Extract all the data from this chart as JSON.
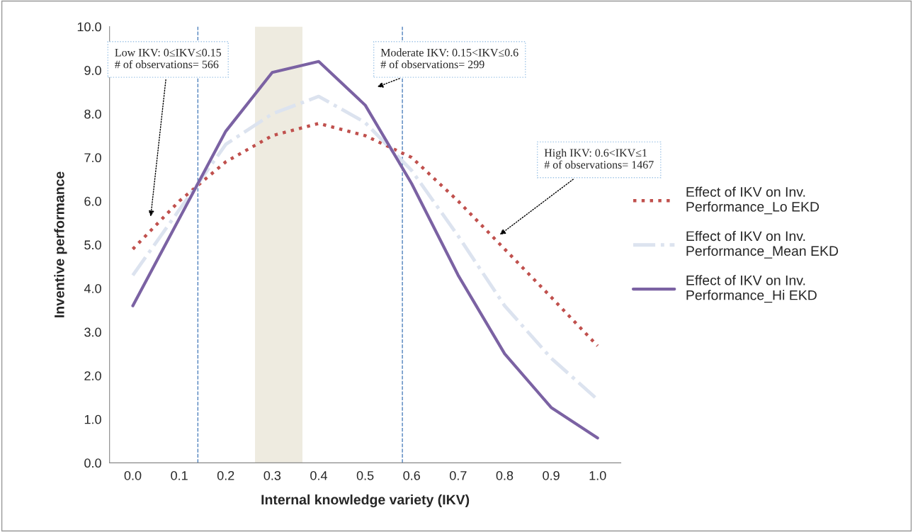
{
  "chart_data": {
    "type": "line",
    "xlabel": "Internal knowledge variety (IKV)",
    "ylabel": "Inventive performance",
    "x": [
      0.0,
      0.1,
      0.2,
      0.3,
      0.4,
      0.5,
      0.6,
      0.7,
      0.8,
      0.9,
      1.0
    ],
    "series": [
      {
        "name": "Effect of IKV on Inv.\nPerformance_Lo EKD",
        "color": "#c0504d",
        "line_style": "dotted",
        "values": [
          4.9,
          6.0,
          6.9,
          7.5,
          7.78,
          7.5,
          7.0,
          6.0,
          4.9,
          3.8,
          2.68
        ]
      },
      {
        "name": "Effect of IKV on Inv.\nPerformance_Mean EKD",
        "color": "#dce3ef",
        "line_style": "dashdot",
        "values": [
          4.3,
          5.8,
          7.3,
          8.0,
          8.4,
          7.8,
          6.7,
          5.2,
          3.6,
          2.4,
          1.45
        ]
      },
      {
        "name": "Effect of IKV on Inv.\nPerformance_Hi EKD",
        "color": "#7b62a3",
        "line_style": "solid",
        "values": [
          3.6,
          5.6,
          7.6,
          8.95,
          9.2,
          8.2,
          6.4,
          4.3,
          2.5,
          1.27,
          0.57
        ]
      }
    ],
    "xlim": [
      -0.05,
      1.05
    ],
    "xticks": [
      {
        "value": 0.0,
        "label": "0.0"
      },
      {
        "value": 0.1,
        "label": "0.1"
      },
      {
        "value": 0.2,
        "label": "0.2"
      },
      {
        "value": 0.3,
        "label": "0.3"
      },
      {
        "value": 0.4,
        "label": "0.4"
      },
      {
        "value": 0.5,
        "label": "0.5"
      },
      {
        "value": 0.6,
        "label": "0.6"
      },
      {
        "value": 0.7,
        "label": "0.7"
      },
      {
        "value": 0.8,
        "label": "0.8"
      },
      {
        "value": 0.9,
        "label": "0.9"
      },
      {
        "value": 1.0,
        "label": "1.0"
      }
    ],
    "ylim": [
      0,
      10
    ],
    "yticks": [
      {
        "value": 0,
        "label": "0.0"
      },
      {
        "value": 1,
        "label": "1.0"
      },
      {
        "value": 2,
        "label": "2.0"
      },
      {
        "value": 3,
        "label": "3.0"
      },
      {
        "value": 4,
        "label": "4.0"
      },
      {
        "value": 5,
        "label": "5.0"
      },
      {
        "value": 6,
        "label": "6.0"
      },
      {
        "value": 7,
        "label": "7.0"
      },
      {
        "value": 8,
        "label": "8.0"
      },
      {
        "value": 9,
        "label": "9.0"
      },
      {
        "value": 10,
        "label": "10.0"
      }
    ],
    "ref_lines": [
      {
        "axis": "x",
        "value": 0.14,
        "color": "#4f81bd",
        "line_style": "dashed"
      },
      {
        "axis": "x",
        "value": 0.58,
        "color": "#4f81bd",
        "line_style": "dashed"
      }
    ],
    "bands": [
      {
        "axis": "x",
        "from": 0.263,
        "to": 0.365,
        "color": "#eeebe0"
      }
    ],
    "annotations": [
      "Low IKV: 0≤IKV≤0.15\n# of observations= 566",
      "Moderate IKV: 0.15<IKV≤0.6\n# of observations= 299",
      "High IKV: 0.6<IKV≤1\n# of observations= 1467"
    ],
    "grid": false,
    "legend": "right"
  }
}
